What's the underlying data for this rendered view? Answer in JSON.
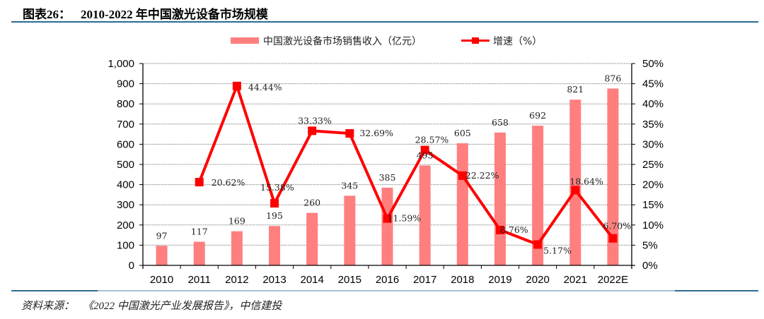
{
  "header": {
    "figure_label": "图表26：",
    "title": "2010-2022 年中国激光设备市场规模"
  },
  "footer": {
    "source_label": "资料来源：",
    "source_text": "《2022 中国激光产业发展报告》，中信建投"
  },
  "colors": {
    "bar": "#FF7F7F",
    "line": "#FF0000",
    "rule": "#2e6a93",
    "rule_light": "#a9bfcf"
  },
  "chart_data": {
    "type": "bar+line",
    "title": "2010-2022 年中国激光设备市场规模",
    "categories": [
      "2010",
      "2011",
      "2012",
      "2013",
      "2014",
      "2015",
      "2016",
      "2017",
      "2018",
      "2019",
      "2020",
      "2021",
      "2022E"
    ],
    "series": [
      {
        "name": "中国激光设备市场销售收入（亿元）",
        "type": "bar",
        "axis": "left",
        "values": [
          97,
          117,
          169,
          195,
          260,
          345,
          385,
          495,
          605,
          658,
          692,
          821,
          876
        ],
        "labels": [
          "97",
          "117",
          "169",
          "195",
          "260",
          "345",
          "385",
          "495",
          "605",
          "658",
          "692",
          "821",
          "876"
        ]
      },
      {
        "name": "增速（%）",
        "type": "line",
        "axis": "right",
        "values": [
          null,
          20.62,
          44.44,
          15.38,
          33.33,
          32.69,
          11.59,
          28.57,
          22.22,
          8.76,
          5.17,
          18.64,
          6.7
        ],
        "labels": [
          null,
          "20.62%",
          "44.44%",
          "15.38%",
          "33.33%",
          "32.69%",
          "11.59%",
          "28.57%",
          "22.22%",
          "8.76%",
          "5.17%",
          "18.64%",
          "6.70%"
        ]
      }
    ],
    "left_axis": {
      "ylim": [
        0,
        1000
      ],
      "ticks": [
        0,
        100,
        200,
        300,
        400,
        500,
        600,
        700,
        800,
        900,
        1000
      ],
      "tick_labels": [
        "0",
        "100",
        "200",
        "300",
        "400",
        "500",
        "600",
        "700",
        "800",
        "900",
        "1,000"
      ]
    },
    "right_axis": {
      "ylim": [
        0,
        50
      ],
      "ticks": [
        0,
        5,
        10,
        15,
        20,
        25,
        30,
        35,
        40,
        45,
        50
      ],
      "tick_labels": [
        "0%",
        "5%",
        "10%",
        "15%",
        "20%",
        "25%",
        "30%",
        "35%",
        "40%",
        "45%",
        "50%"
      ]
    },
    "grid": true,
    "legend": "top-center",
    "xlabel": "",
    "ylabel": ""
  }
}
